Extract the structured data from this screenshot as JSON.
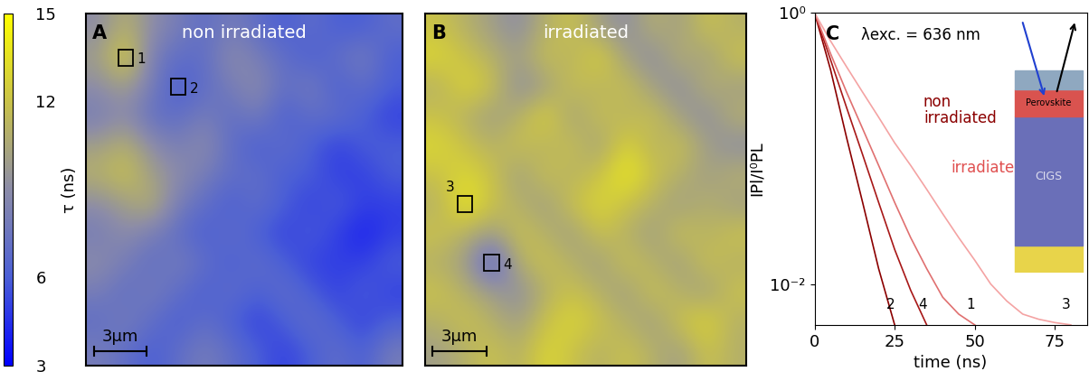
{
  "chart_data": [
    {
      "type": "heatmap",
      "panel": "A",
      "title": "non irradiated",
      "tick_labels": false,
      "cells": [
        [
          9,
          11,
          9,
          8,
          7,
          8,
          7,
          6,
          7,
          6,
          6,
          7
        ],
        [
          10,
          13,
          8,
          7,
          7,
          9,
          8,
          7,
          6,
          7,
          8,
          6
        ],
        [
          9,
          10,
          8,
          6,
          7,
          8,
          9,
          7,
          8,
          6,
          7,
          6
        ],
        [
          8,
          9,
          7,
          7,
          8,
          7,
          8,
          6,
          7,
          7,
          6,
          5
        ],
        [
          10,
          11,
          9,
          8,
          9,
          7,
          6,
          7,
          6,
          5,
          6,
          6
        ],
        [
          11,
          12,
          10,
          9,
          8,
          7,
          7,
          6,
          6,
          5,
          5,
          6
        ],
        [
          9,
          10,
          11,
          8,
          7,
          6,
          7,
          6,
          5,
          6,
          5,
          5
        ],
        [
          8,
          9,
          8,
          7,
          6,
          7,
          6,
          5,
          6,
          5,
          4,
          5
        ],
        [
          9,
          8,
          7,
          8,
          7,
          6,
          7,
          6,
          5,
          5,
          5,
          6
        ],
        [
          8,
          7,
          8,
          7,
          6,
          7,
          6,
          7,
          6,
          5,
          6,
          5
        ],
        [
          7,
          8,
          7,
          6,
          7,
          6,
          5,
          6,
          7,
          6,
          5,
          6
        ],
        [
          8,
          7,
          6,
          7,
          8,
          7,
          6,
          5,
          6,
          7,
          6,
          8
        ]
      ],
      "regions": [
        {
          "label": "1",
          "row": 1,
          "col": 1
        },
        {
          "label": "2",
          "row": 2,
          "col": 3
        }
      ],
      "size_um": 18,
      "scale_bar": {
        "label": "3µm",
        "length": 3
      },
      "colorbar": {
        "label": "τ (ns)",
        "range": [
          3,
          15
        ],
        "ticks": [
          3,
          6,
          12,
          15
        ]
      }
    },
    {
      "type": "heatmap",
      "panel": "B",
      "title": "irradiated",
      "tick_labels": false,
      "cells": [
        [
          12,
          11,
          10,
          9,
          11,
          12,
          10,
          9,
          11,
          10,
          12,
          11
        ],
        [
          13,
          12,
          11,
          10,
          12,
          11,
          13,
          10,
          9,
          11,
          10,
          12
        ],
        [
          11,
          13,
          12,
          9,
          10,
          12,
          11,
          12,
          10,
          9,
          11,
          10
        ],
        [
          12,
          11,
          10,
          11,
          13,
          10,
          12,
          11,
          12,
          10,
          9,
          11
        ],
        [
          13,
          12,
          11,
          12,
          11,
          12,
          10,
          13,
          11,
          12,
          10,
          9
        ],
        [
          12,
          13,
          12,
          10,
          12,
          11,
          12,
          14,
          12,
          11,
          10,
          11
        ],
        [
          11,
          14,
          12,
          11,
          10,
          12,
          13,
          12,
          11,
          10,
          11,
          10
        ],
        [
          12,
          11,
          10,
          12,
          11,
          10,
          12,
          11,
          10,
          12,
          11,
          12
        ],
        [
          11,
          10,
          6,
          11,
          12,
          11,
          10,
          12,
          11,
          10,
          12,
          11
        ],
        [
          12,
          11,
          10,
          9,
          11,
          12,
          11,
          10,
          12,
          11,
          10,
          12
        ],
        [
          11,
          12,
          11,
          10,
          12,
          13,
          12,
          11,
          10,
          12,
          13,
          11
        ],
        [
          10,
          11,
          12,
          11,
          13,
          12,
          11,
          12,
          11,
          10,
          12,
          11
        ]
      ],
      "regions": [
        {
          "label": "3",
          "row": 6,
          "col": 1
        },
        {
          "label": "4",
          "row": 8,
          "col": 2
        }
      ],
      "size_um": 18,
      "scale_bar": {
        "label": "3µm",
        "length": 3
      }
    },
    {
      "type": "line",
      "panel": "C",
      "title": "λexc. = 636 nm",
      "log": "y",
      "x_label": "time (ns)",
      "y_label": "IPl/I⁰PL",
      "xlim": [
        0,
        85
      ],
      "xticks": [
        0,
        25,
        50,
        75
      ],
      "ylim": [
        0.005,
        1
      ],
      "yticks": [
        {
          "value": 0.01,
          "label": "10⁻²"
        },
        {
          "value": 1,
          "label": "10⁰"
        }
      ],
      "series": [
        {
          "name": "2",
          "color": "#8b0000",
          "x": [
            0,
            5,
            10,
            15,
            20,
            25
          ],
          "values": [
            1,
            0.38,
            0.12,
            0.04,
            0.013,
            0.005
          ]
        },
        {
          "name": "4",
          "color": "#a81818",
          "x": [
            0,
            5,
            10,
            15,
            20,
            25,
            30,
            35
          ],
          "values": [
            1,
            0.45,
            0.2,
            0.09,
            0.04,
            0.018,
            0.009,
            0.005
          ]
        },
        {
          "name": "1",
          "color": "#e07070",
          "x": [
            0,
            5,
            10,
            15,
            20,
            25,
            30,
            35,
            40,
            45,
            50
          ],
          "values": [
            1,
            0.5,
            0.26,
            0.14,
            0.075,
            0.04,
            0.022,
            0.013,
            0.008,
            0.006,
            0.005
          ]
        },
        {
          "name": "3",
          "color": "#f4a3a3",
          "x": [
            0,
            5,
            10,
            15,
            20,
            25,
            30,
            35,
            40,
            45,
            50,
            55,
            60,
            65,
            70,
            75,
            80
          ],
          "values": [
            1,
            0.62,
            0.4,
            0.26,
            0.17,
            0.11,
            0.075,
            0.05,
            0.033,
            0.022,
            0.015,
            0.01,
            0.0075,
            0.006,
            0.0055,
            0.0052,
            0.005
          ]
        }
      ],
      "annotations": [
        {
          "text": "non\nirradiated",
          "color": "#8b0000"
        },
        {
          "text": "irradiated",
          "color": "#e05050"
        }
      ],
      "inset": {
        "layers": [
          "Perovskite",
          "CIGS"
        ]
      }
    }
  ]
}
